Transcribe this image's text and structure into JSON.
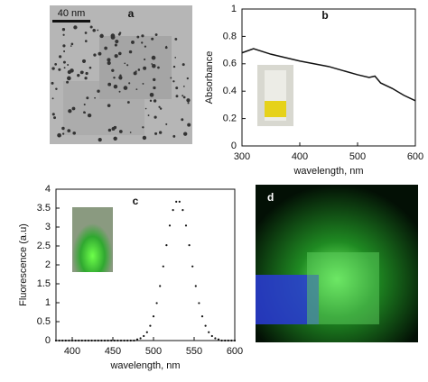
{
  "images": [
    {
      "panel_label": "a",
      "scale_bar": "40 nm"
    },
    {
      "panel_label": "d"
    }
  ],
  "chart_data": [
    {
      "type": "line",
      "panel_label": "b",
      "x_label": "wavelength, nm",
      "y_label": "Absorbance",
      "color": "#111111",
      "x": [
        300,
        320,
        350,
        400,
        450,
        500,
        520,
        530,
        540,
        560,
        580,
        600
      ],
      "values": [
        0.68,
        0.71,
        0.67,
        0.62,
        0.58,
        0.52,
        0.5,
        0.51,
        0.46,
        0.42,
        0.37,
        0.33
      ],
      "xlim": [
        300,
        600
      ],
      "xticks": [
        300,
        400,
        500,
        600
      ],
      "ylim": [
        0,
        1
      ],
      "yticks": [
        0,
        0.2,
        0.4,
        0.6,
        0.8,
        1
      ]
    },
    {
      "type": "scatter",
      "panel_label": "c",
      "x_label": "wavelength, nm",
      "y_label": "Fluorescence (a.u)",
      "color": "#111111",
      "x": [
        380,
        384,
        388,
        392,
        396,
        400,
        404,
        408,
        412,
        416,
        420,
        424,
        428,
        432,
        436,
        440,
        444,
        448,
        452,
        456,
        460,
        464,
        468,
        472,
        476,
        480,
        484,
        488,
        492,
        496,
        500,
        504,
        508,
        512,
        516,
        520,
        524,
        528,
        532,
        536,
        540,
        544,
        548,
        552,
        556,
        560,
        564,
        568,
        572,
        576,
        580,
        584,
        588,
        592,
        596,
        600
      ],
      "values": [
        0,
        0,
        0,
        0,
        0,
        0,
        0,
        0,
        0,
        0,
        0,
        0,
        0,
        0,
        0,
        0,
        0,
        0,
        0,
        0,
        0,
        0,
        0,
        0,
        0,
        0.03,
        0.06,
        0.12,
        0.22,
        0.39,
        0.64,
        0.99,
        1.44,
        1.96,
        2.52,
        3.04,
        3.45,
        3.67,
        3.67,
        3.45,
        3.04,
        2.52,
        1.96,
        1.44,
        0.99,
        0.64,
        0.39,
        0.22,
        0.12,
        0.06,
        0.03,
        0,
        0,
        0,
        0,
        0
      ],
      "xlim": [
        380,
        600
      ],
      "xticks": [
        400,
        450,
        500,
        550,
        600
      ],
      "ylim": [
        0,
        4
      ],
      "yticks": [
        0,
        0.5,
        1,
        1.5,
        2,
        2.5,
        3,
        3.5,
        4
      ]
    }
  ]
}
